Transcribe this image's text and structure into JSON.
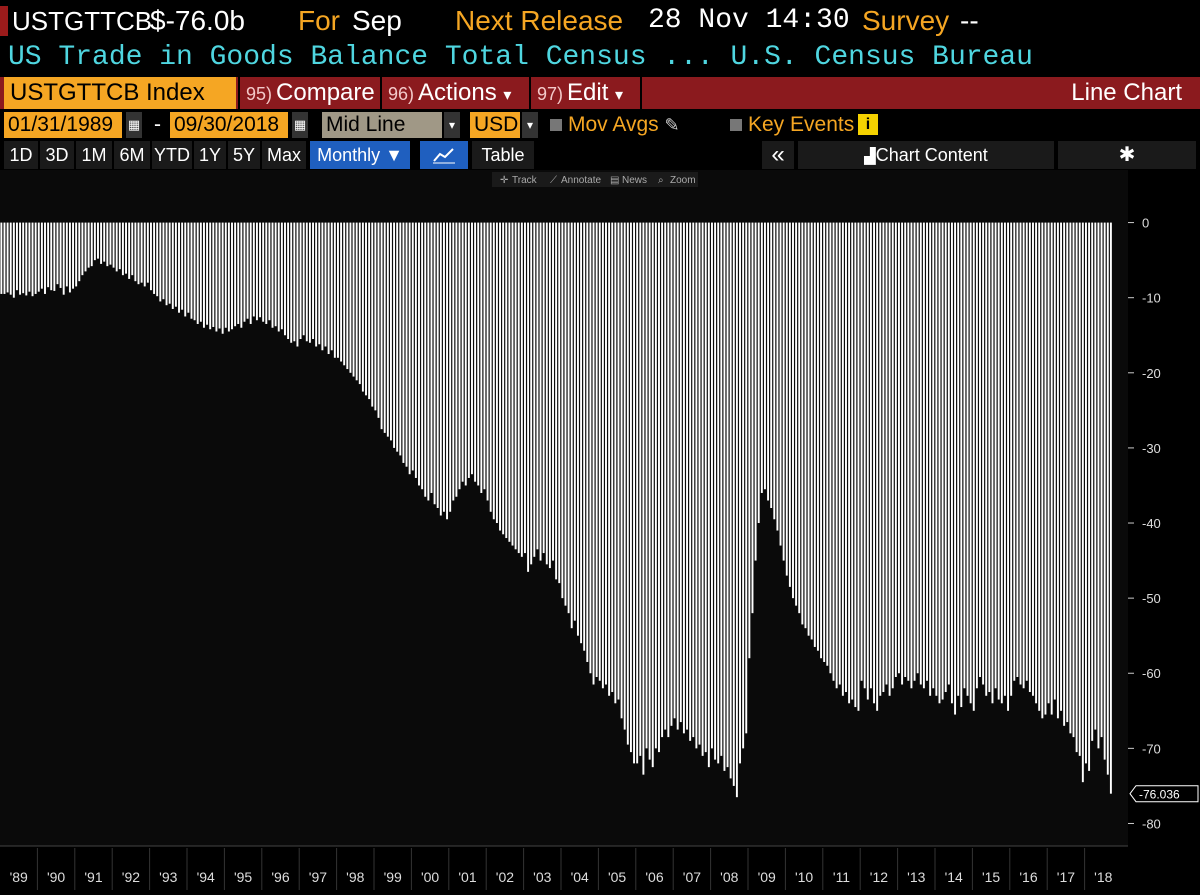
{
  "header": {
    "ticker": "USTGTTCB",
    "value": "$-76.0b",
    "for_label": "For",
    "for_value": "Sep",
    "next_release_label": "Next Release",
    "next_release_value": "28 Nov 14:30",
    "survey_label": "Survey",
    "survey_value": "--",
    "description": "US Trade in Goods Balance Total Census ... U.S. Census Bureau"
  },
  "toolbar": {
    "security": "USTGTTCB Index",
    "compare_num": "95)",
    "compare_label": "Compare",
    "actions_num": "96)",
    "actions_label": "Actions",
    "actions_arrow": "▾",
    "edit_num": "97)",
    "edit_label": "Edit",
    "edit_arrow": "▾",
    "chart_type": "Line Chart"
  },
  "controls": {
    "start_date": "01/31/1989",
    "dash": "-",
    "end_date": "09/30/2018",
    "line_style": "Mid Line",
    "currency": "USD",
    "mov_avgs": "Mov Avgs",
    "key_events": "Key Events",
    "info_glyph": "i"
  },
  "periods": {
    "items": [
      "1D",
      "3D",
      "1M",
      "6M",
      "YTD",
      "1Y",
      "5Y",
      "Max"
    ],
    "frequency": "Monthly ▼",
    "table": "Table",
    "collapse": "«",
    "chart_content": "Chart Content",
    "settings_glyph": "✱"
  },
  "chart_tools": {
    "track": "Track",
    "annotate": "Annotate",
    "news": "News",
    "zoom": "Zoom"
  },
  "colors": {
    "orange": "#f5a623",
    "cyan": "#4fd6e0",
    "toolbar_red": "#8b1a1e",
    "active_blue": "#1f5fbf",
    "bar": "#ffffff"
  },
  "chart_data": {
    "type": "bar",
    "frequency": "monthly",
    "title": "",
    "xlabel": "",
    "ylabel": "",
    "ylim": [
      -83,
      7
    ],
    "yticks": [
      0,
      -10,
      -20,
      -30,
      -40,
      -50,
      -60,
      -70,
      -80
    ],
    "xticks": [
      "'89",
      "'90",
      "'91",
      "'92",
      "'93",
      "'94",
      "'95",
      "'96",
      "'97",
      "'98",
      "'99",
      "'00",
      "'01",
      "'02",
      "'03",
      "'04",
      "'05",
      "'06",
      "'07",
      "'08",
      "'09",
      "'10",
      "'11",
      "'12",
      "'13",
      "'14",
      "'15",
      "'16",
      "'17",
      "'18"
    ],
    "last_value_label": "-76.036",
    "yearly_values": [
      [
        -9.5,
        -9.5,
        -9.3,
        -9.6,
        -10.0,
        -9.0,
        -9.6,
        -9.4,
        -9.7,
        -9.2,
        -9.8,
        -9.5
      ],
      [
        -9.2,
        -8.8,
        -9.5,
        -8.6,
        -9.0,
        -9.1,
        -8.2,
        -8.7,
        -9.6,
        -8.5,
        -9.3,
        -8.8
      ],
      [
        -8.5,
        -7.8,
        -7.0,
        -6.5,
        -6.0,
        -5.8,
        -5.0,
        -4.8,
        -5.5,
        -5.2,
        -5.8,
        -5.6
      ],
      [
        -6.0,
        -6.5,
        -6.2,
        -7.0,
        -6.8,
        -7.5,
        -7.0,
        -7.8,
        -8.2,
        -8.0,
        -8.5,
        -8.0
      ],
      [
        -9.0,
        -9.5,
        -9.8,
        -10.5,
        -10.2,
        -11.0,
        -10.8,
        -11.5,
        -11.2,
        -12.0,
        -11.6,
        -12.5
      ],
      [
        -12.0,
        -12.8,
        -13.0,
        -13.5,
        -13.2,
        -14.0,
        -13.6,
        -14.2,
        -13.9,
        -14.5,
        -14.1,
        -14.8
      ],
      [
        -14.0,
        -14.5,
        -14.2,
        -13.8,
        -13.5,
        -14.0,
        -13.2,
        -12.8,
        -13.5,
        -12.5,
        -13.0,
        -12.6
      ],
      [
        -13.2,
        -13.5,
        -13.0,
        -14.0,
        -13.8,
        -14.5,
        -14.2,
        -15.0,
        -15.5,
        -16.0,
        -15.8,
        -16.5
      ],
      [
        -15.5,
        -15.0,
        -15.8,
        -16.0,
        -15.5,
        -16.5,
        -16.2,
        -17.0,
        -16.5,
        -17.5,
        -17.0,
        -18.0
      ],
      [
        -18.0,
        -18.5,
        -19.0,
        -19.5,
        -20.0,
        -20.5,
        -21.0,
        -21.5,
        -22.5,
        -23.0,
        -23.5,
        -24.5
      ],
      [
        -25.0,
        -26.0,
        -27.5,
        -28.0,
        -28.5,
        -29.0,
        -30.0,
        -30.5,
        -31.0,
        -32.0,
        -32.5,
        -33.5
      ],
      [
        -33.0,
        -34.0,
        -35.0,
        -35.5,
        -36.5,
        -37.0,
        -36.0,
        -37.5,
        -38.0,
        -39.0,
        -38.5,
        -39.5
      ],
      [
        -38.5,
        -37.0,
        -36.5,
        -35.5,
        -34.5,
        -35.0,
        -34.0,
        -33.5,
        -34.5,
        -35.0,
        -36.0,
        -35.5
      ],
      [
        -37.0,
        -38.5,
        -39.5,
        -40.0,
        -41.0,
        -41.5,
        -42.0,
        -42.5,
        -43.0,
        -43.5,
        -44.0,
        -44.5
      ],
      [
        -44.0,
        -46.5,
        -45.5,
        -44.5,
        -43.5,
        -45.0,
        -44.0,
        -45.5,
        -46.0,
        -45.0,
        -47.5,
        -48.0
      ],
      [
        -50.0,
        -51.0,
        -52.0,
        -54.0,
        -53.0,
        -55.0,
        -56.0,
        -57.0,
        -58.5,
        -60.0,
        -61.5,
        -60.5
      ],
      [
        -61.0,
        -62.0,
        -61.5,
        -63.0,
        -62.5,
        -64.0,
        -63.5,
        -66.0,
        -67.5,
        -69.5,
        -70.5,
        -72.0
      ],
      [
        -72.0,
        -71.0,
        -73.5,
        -70.0,
        -71.5,
        -72.5,
        -70.0,
        -70.5,
        -68.5,
        -67.5,
        -68.5,
        -67.0
      ],
      [
        -66.0,
        -67.5,
        -66.5,
        -68.0,
        -67.5,
        -69.0,
        -68.5,
        -70.0,
        -69.5,
        -71.0,
        -70.5,
        -72.5
      ],
      [
        -70.0,
        -71.5,
        -72.0,
        -71.0,
        -73.0,
        -72.5,
        -74.0,
        -75.0,
        -76.5,
        -72.0,
        -70.0,
        -68.0
      ],
      [
        -58.0,
        -52.0,
        -45.0,
        -40.0,
        -36.0,
        -35.5,
        -37.0,
        -38.0,
        -39.5,
        -41.0,
        -43.0,
        -45.0
      ],
      [
        -47.0,
        -48.5,
        -50.0,
        -51.0,
        -52.0,
        -53.5,
        -54.0,
        -55.0,
        -55.5,
        -56.5,
        -57.0,
        -58.0
      ],
      [
        -58.5,
        -59.0,
        -60.0,
        -61.0,
        -62.0,
        -61.5,
        -63.0,
        -62.5,
        -64.0,
        -63.5,
        -64.5,
        -65.0
      ],
      [
        -61.0,
        -62.0,
        -63.5,
        -62.0,
        -64.0,
        -65.0,
        -63.0,
        -62.5,
        -61.5,
        -63.0,
        -62.0,
        -60.5
      ],
      [
        -60.0,
        -61.5,
        -60.5,
        -61.0,
        -62.0,
        -61.0,
        -60.0,
        -61.5,
        -62.0,
        -61.0,
        -63.0,
        -62.0
      ],
      [
        -63.0,
        -64.0,
        -63.5,
        -62.5,
        -61.5,
        -64.0,
        -65.5,
        -63.0,
        -64.5,
        -62.0,
        -63.0,
        -64.0
      ],
      [
        -65.0,
        -62.0,
        -60.5,
        -61.5,
        -63.0,
        -62.5,
        -64.0,
        -62.0,
        -63.5,
        -64.0,
        -63.0,
        -65.0
      ],
      [
        -63.0,
        -61.0,
        -60.5,
        -61.5,
        -62.0,
        -61.0,
        -62.5,
        -63.0,
        -64.0,
        -65.0,
        -66.0,
        -65.5
      ],
      [
        -64.0,
        -65.5,
        -63.5,
        -66.0,
        -65.0,
        -67.0,
        -66.5,
        -68.0,
        -68.5,
        -70.5,
        -71.0,
        -74.5
      ],
      [
        -72.0,
        -73.0,
        -69.0,
        -67.5,
        -70.0,
        -68.5,
        -71.5,
        -73.5,
        -76.036
      ]
    ]
  }
}
